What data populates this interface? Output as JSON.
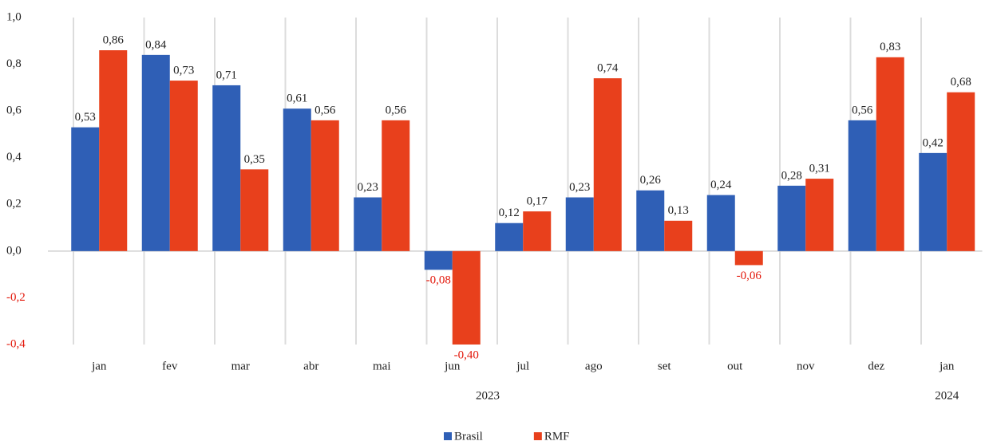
{
  "chart_data": {
    "type": "bar",
    "categories": [
      "jan",
      "fev",
      "mar",
      "abr",
      "mai",
      "jun",
      "jul",
      "ago",
      "set",
      "out",
      "nov",
      "dez",
      "jan"
    ],
    "category_groups": [
      {
        "label": "2023",
        "count": 12
      },
      {
        "label": "2024",
        "count": 1
      }
    ],
    "series": [
      {
        "name": "Brasil",
        "color": "#2f5fb6",
        "values": [
          0.53,
          0.84,
          0.71,
          0.61,
          0.23,
          -0.08,
          0.12,
          0.23,
          0.26,
          0.24,
          0.28,
          0.56,
          0.42
        ],
        "value_labels": [
          "0,53",
          "0,84",
          "0,71",
          "0,61",
          "0,23",
          "-0,08",
          "0,12",
          "0,23",
          "0,26",
          "0,24",
          "0,28",
          "0,56",
          "0,42"
        ]
      },
      {
        "name": "RMF",
        "color": "#e8401c",
        "values": [
          0.86,
          0.73,
          0.35,
          0.56,
          0.56,
          -0.4,
          0.17,
          0.74,
          0.13,
          -0.06,
          0.31,
          0.83,
          0.68
        ],
        "value_labels": [
          "0,86",
          "0,73",
          "0,35",
          "0,56",
          "0,56",
          "-0,40",
          "0,17",
          "0,74",
          "0,13",
          "-0,06",
          "0,31",
          "0,83",
          "0,68"
        ]
      }
    ],
    "ylim": [
      -0.4,
      1.0
    ],
    "yticks": [
      {
        "value": -0.4,
        "label": "-0,4"
      },
      {
        "value": -0.2,
        "label": "-0,2"
      },
      {
        "value": 0,
        "label": "0,0"
      },
      {
        "value": 0.2,
        "label": "0,2"
      },
      {
        "value": 0.4,
        "label": "0,4"
      },
      {
        "value": 0.6,
        "label": "0,6"
      },
      {
        "value": 0.8,
        "label": "0,8"
      },
      {
        "value": 1.0,
        "label": "1,0"
      }
    ],
    "legend": "bottom"
  }
}
